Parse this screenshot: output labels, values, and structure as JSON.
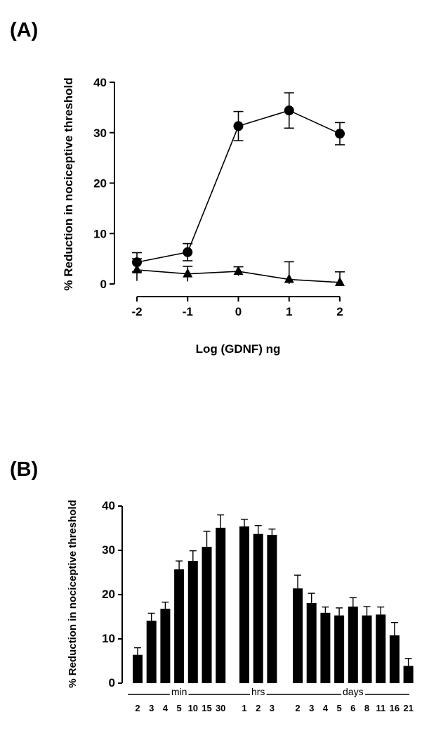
{
  "panels": {
    "a_label": "(A)",
    "b_label": "(B)"
  },
  "chart_data": [
    {
      "type": "line",
      "xlabel": "Log (GDNF) ng",
      "ylabel": "% Reduction in nociceptive threshold",
      "xlim": [
        -2,
        2
      ],
      "ylim": [
        0,
        40
      ],
      "xticks": [
        "-2",
        "-1",
        "0",
        "1",
        "2"
      ],
      "yticks": [
        "0",
        "10",
        "20",
        "30",
        "40"
      ],
      "grid": false,
      "series": [
        {
          "marker": "circle",
          "x": [
            -2,
            -1,
            0,
            1,
            2
          ],
          "y": [
            4.3,
            6.3,
            31.3,
            34.4,
            29.8
          ],
          "err": [
            1.9,
            1.7,
            2.9,
            3.5,
            2.2
          ]
        },
        {
          "marker": "triangle",
          "x": [
            -2,
            -1,
            0,
            1,
            2
          ],
          "y": [
            2.8,
            2.0,
            2.5,
            0.9,
            0.3
          ],
          "err": [
            2.2,
            1.5,
            0.9,
            3.5,
            2.1
          ]
        }
      ]
    },
    {
      "type": "bar",
      "ylabel": "% Reduction in nociceptive threshold",
      "ylim": [
        0,
        40
      ],
      "yticks": [
        "0",
        "10",
        "20",
        "30",
        "40"
      ],
      "grid": false,
      "groups": [
        {
          "label": "min",
          "categories": [
            "2",
            "3",
            "4",
            "5",
            "10",
            "15",
            "30"
          ],
          "values": [
            6.4,
            14.1,
            16.8,
            25.7,
            27.6,
            30.8,
            35.1
          ],
          "errors": [
            1.6,
            1.7,
            1.5,
            1.9,
            2.3,
            3.5,
            2.9
          ]
        },
        {
          "label": "hrs",
          "categories": [
            "1",
            "2",
            "3"
          ],
          "values": [
            35.4,
            33.7,
            33.5
          ],
          "errors": [
            1.6,
            1.9,
            1.3
          ]
        },
        {
          "label": "days",
          "categories": [
            "2",
            "3",
            "4",
            "5",
            "6",
            "8",
            "11",
            "16",
            "21"
          ],
          "values": [
            21.4,
            18.1,
            15.9,
            15.3,
            17.3,
            15.3,
            15.5,
            10.8,
            3.9
          ],
          "errors": [
            3.0,
            2.2,
            1.3,
            1.7,
            2.0,
            2.0,
            1.7,
            2.9,
            1.7
          ]
        }
      ]
    }
  ]
}
